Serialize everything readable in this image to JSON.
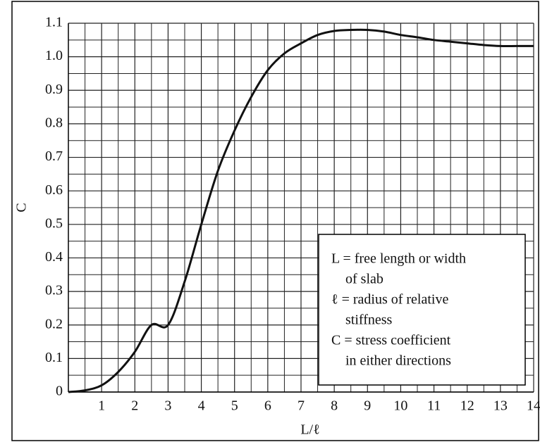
{
  "chart_data": {
    "type": "line",
    "xlabel": "L/ℓ",
    "ylabel": "C",
    "x": [
      0,
      0.5,
      1,
      1.5,
      2,
      2.5,
      3,
      3.5,
      4,
      4.5,
      5,
      5.5,
      6,
      6.5,
      7,
      7.5,
      8,
      8.5,
      9,
      9.5,
      10,
      10.5,
      11,
      11.5,
      12,
      12.5,
      13,
      13.5,
      14
    ],
    "series": [
      {
        "color": "#111111",
        "values": [
          0,
          0.005,
          0.02,
          0.06,
          0.12,
          0.2,
          0.2,
          0.33,
          0.5,
          0.66,
          0.78,
          0.88,
          0.96,
          1.01,
          1.04,
          1.065,
          1.077,
          1.08,
          1.08,
          1.075,
          1.065,
          1.058,
          1.05,
          1.045,
          1.04,
          1.035,
          1.032,
          1.032,
          1.032
        ]
      }
    ],
    "xlim": [
      0,
      14
    ],
    "xticks": [
      1,
      2,
      3,
      4,
      5,
      6,
      7,
      8,
      9,
      10,
      11,
      12,
      13,
      14
    ],
    "ylim": [
      0,
      1.1
    ],
    "yticks": [
      0,
      0.1,
      0.2,
      0.3,
      0.4,
      0.5,
      0.6,
      0.7,
      0.8,
      0.9,
      {
        "value": 1,
        "label": "1.0"
      },
      1.1
    ],
    "grid": true,
    "minor_grid": true,
    "annotation": [
      "L = free length or width",
      "of slab",
      "ℓ = radius of relative",
      "stiffness",
      "C = stress coefficient",
      "in either directions"
    ]
  }
}
